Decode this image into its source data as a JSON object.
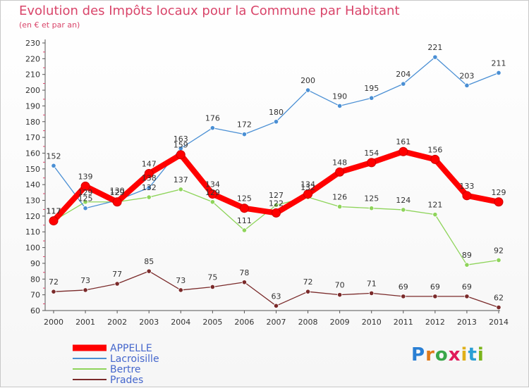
{
  "chart_data": {
    "type": "line",
    "title": "Evolution des Impôts locaux pour la Commune par Habitant",
    "subtitle": "(en € et par an)",
    "x": [
      "2000",
      "2001",
      "2002",
      "2003",
      "2004",
      "2005",
      "2006",
      "2007",
      "2008",
      "2009",
      "2010",
      "2011",
      "2012",
      "2013",
      "2014"
    ],
    "ylim": [
      60,
      230
    ],
    "yticks": [
      60,
      70,
      80,
      90,
      100,
      110,
      120,
      130,
      140,
      150,
      160,
      170,
      180,
      190,
      200,
      210,
      220,
      230
    ],
    "grid": false,
    "legend_position": "bottom-left",
    "series": [
      {
        "name": "APPELLE",
        "color": "#ff0000",
        "values": [
          117,
          139,
          129,
          147,
          159,
          134,
          125,
          122,
          134,
          148,
          154,
          161,
          156,
          133,
          129
        ],
        "labels": [
          "117",
          "139",
          "129",
          "147",
          "159",
          "134",
          "125",
          "122",
          "134",
          "148",
          "154",
          "161",
          "156",
          "133",
          "129"
        ]
      },
      {
        "name": "Lacroisille",
        "color": "#4a8fd4",
        "values": [
          152,
          125,
          130,
          138,
          163,
          176,
          172,
          180,
          200,
          190,
          195,
          204,
          221,
          203,
          211
        ],
        "labels": [
          "152",
          "125",
          "130",
          "138",
          "163",
          "176",
          "172",
          "180",
          "200",
          "190",
          "195",
          "204",
          "221",
          "203",
          "211"
        ]
      },
      {
        "name": "Bertre",
        "color": "#8ed45a",
        "values": [
          117,
          129,
          129,
          132,
          137,
          129,
          111,
          127,
          132,
          126,
          125,
          124,
          121,
          89,
          92
        ],
        "labels": [
          "117",
          "129",
          "129",
          "132",
          "137",
          "129",
          "111",
          "127",
          "132",
          "126",
          "125",
          "124",
          "121",
          "89",
          "92"
        ]
      },
      {
        "name": "Prades",
        "color": "#7a2a2a",
        "values": [
          72,
          73,
          77,
          85,
          73,
          75,
          78,
          63,
          72,
          70,
          71,
          69,
          69,
          69,
          62
        ],
        "labels": [
          "72",
          "73",
          "77",
          "85",
          "73",
          "75",
          "78",
          "63",
          "72",
          "70",
          "71",
          "69",
          "69",
          "69",
          "62"
        ]
      }
    ]
  },
  "branding": {
    "logo_letters": [
      "P",
      "r",
      "o",
      "x",
      "i",
      "t",
      "i"
    ],
    "logo_colors": [
      "#2a7fd4",
      "#e07a1a",
      "#3aa64a",
      "#e01a5a",
      "#e0b01a",
      "#2a9fd4",
      "#7ab41a"
    ]
  }
}
